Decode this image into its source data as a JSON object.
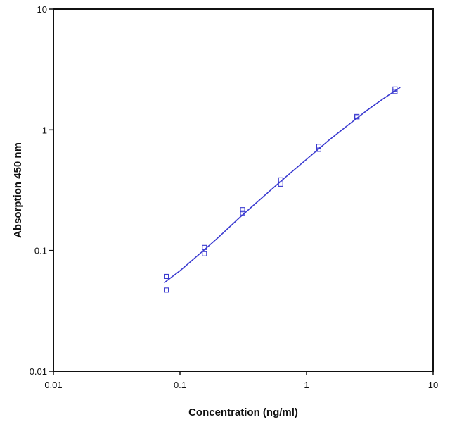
{
  "chart_data": {
    "type": "scatter",
    "title": "",
    "xlabel": "Concentration (ng/ml)",
    "ylabel": "Absorption 450 nm",
    "x_scale": "log",
    "y_scale": "log",
    "xlim": [
      0.01,
      10
    ],
    "ylim": [
      0.01,
      10
    ],
    "x_ticks": [
      0.01,
      0.1,
      1,
      10
    ],
    "x_tick_labels": [
      "0.01",
      "0.1",
      "1",
      "10"
    ],
    "y_ticks": [
      0.01,
      0.1,
      1,
      10
    ],
    "y_tick_labels": [
      "0.01",
      "0.1",
      "1",
      "10"
    ],
    "grid": false,
    "legend": "none",
    "color": "#3a3ad0",
    "series": [
      {
        "mode": "markers",
        "marker": "open-square",
        "x": [
          0.078,
          0.078,
          0.156,
          0.156,
          0.3125,
          0.3125,
          0.625,
          0.625,
          1.25,
          1.25,
          2.5,
          2.5,
          5.0,
          5.0
        ],
        "y": [
          0.061,
          0.047,
          0.106,
          0.094,
          0.218,
          0.205,
          0.385,
          0.355,
          0.73,
          0.69,
          1.29,
          1.26,
          2.18,
          2.08
        ]
      },
      {
        "mode": "line",
        "x": [
          0.075,
          0.1,
          0.15,
          0.2,
          0.3,
          0.5,
          0.7,
          1.0,
          1.5,
          2.0,
          3.0,
          4.0,
          5.5
        ],
        "y": [
          0.054,
          0.068,
          0.098,
          0.128,
          0.19,
          0.305,
          0.415,
          0.57,
          0.82,
          1.04,
          1.45,
          1.8,
          2.25
        ]
      }
    ]
  }
}
